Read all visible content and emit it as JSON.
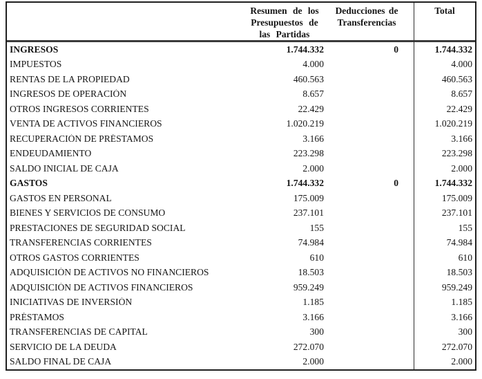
{
  "colors": {
    "border": "#1f1f1f",
    "header_rule": "#3a3a3a",
    "text": "#161616",
    "background": "#ffffff"
  },
  "table": {
    "header": {
      "summary_lines": [
        "Resumen de los",
        "Presupuestos de",
        "las Partidas"
      ],
      "deductions_lines": [
        "Deducciones de",
        "Transferencias"
      ],
      "total_label": "Total"
    },
    "rows": [
      {
        "label": "INGRESOS",
        "resumen": "1.744.332",
        "deducciones": "0",
        "total": "1.744.332",
        "bold": true
      },
      {
        "label": "IMPUESTOS",
        "resumen": "4.000",
        "deducciones": "",
        "total": "4.000",
        "bold": false
      },
      {
        "label": "RENTAS DE LA PROPIEDAD",
        "resumen": "460.563",
        "deducciones": "",
        "total": "460.563",
        "bold": false
      },
      {
        "label": "INGRESOS DE OPERACIÓN",
        "resumen": "8.657",
        "deducciones": "",
        "total": "8.657",
        "bold": false
      },
      {
        "label": "OTROS INGRESOS CORRIENTES",
        "resumen": "22.429",
        "deducciones": "",
        "total": "22.429",
        "bold": false
      },
      {
        "label": "VENTA DE ACTIVOS FINANCIEROS",
        "resumen": "1.020.219",
        "deducciones": "",
        "total": "1.020.219",
        "bold": false
      },
      {
        "label": "RECUPERACIÓN DE PRÉSTAMOS",
        "resumen": "3.166",
        "deducciones": "",
        "total": "3.166",
        "bold": false
      },
      {
        "label": "ENDEUDAMIENTO",
        "resumen": "223.298",
        "deducciones": "",
        "total": "223.298",
        "bold": false
      },
      {
        "label": "SALDO INICIAL DE CAJA",
        "resumen": "2.000",
        "deducciones": "",
        "total": "2.000",
        "bold": false
      },
      {
        "label": "GASTOS",
        "resumen": "1.744.332",
        "deducciones": "0",
        "total": "1.744.332",
        "bold": true
      },
      {
        "label": "GASTOS EN PERSONAL",
        "resumen": "175.009",
        "deducciones": "",
        "total": "175.009",
        "bold": false
      },
      {
        "label": "BIENES Y SERVICIOS DE CONSUMO",
        "resumen": "237.101",
        "deducciones": "",
        "total": "237.101",
        "bold": false
      },
      {
        "label": "PRESTACIONES DE SEGURIDAD SOCIAL",
        "resumen": "155",
        "deducciones": "",
        "total": "155",
        "bold": false
      },
      {
        "label": "TRANSFERENCIAS CORRIENTES",
        "resumen": "74.984",
        "deducciones": "",
        "total": "74.984",
        "bold": false
      },
      {
        "label": "OTROS GASTOS CORRIENTES",
        "resumen": "610",
        "deducciones": "",
        "total": "610",
        "bold": false
      },
      {
        "label": "ADQUISICIÓN DE ACTIVOS NO FINANCIEROS",
        "resumen": "18.503",
        "deducciones": "",
        "total": "18.503",
        "bold": false
      },
      {
        "label": "ADQUISICIÓN DE ACTIVOS FINANCIEROS",
        "resumen": "959.249",
        "deducciones": "",
        "total": "959.249",
        "bold": false
      },
      {
        "label": "INICIATIVAS DE INVERSIÓN",
        "resumen": "1.185",
        "deducciones": "",
        "total": "1.185",
        "bold": false
      },
      {
        "label": "PRÉSTAMOS",
        "resumen": "3.166",
        "deducciones": "",
        "total": "3.166",
        "bold": false
      },
      {
        "label": "TRANSFERENCIAS DE CAPITAL",
        "resumen": "300",
        "deducciones": "",
        "total": "300",
        "bold": false
      },
      {
        "label": "SERVICIO DE LA DEUDA",
        "resumen": "272.070",
        "deducciones": "",
        "total": "272.070",
        "bold": false
      },
      {
        "label": "SALDO FINAL DE CAJA",
        "resumen": "2.000",
        "deducciones": "",
        "total": "2.000",
        "bold": false
      }
    ]
  }
}
